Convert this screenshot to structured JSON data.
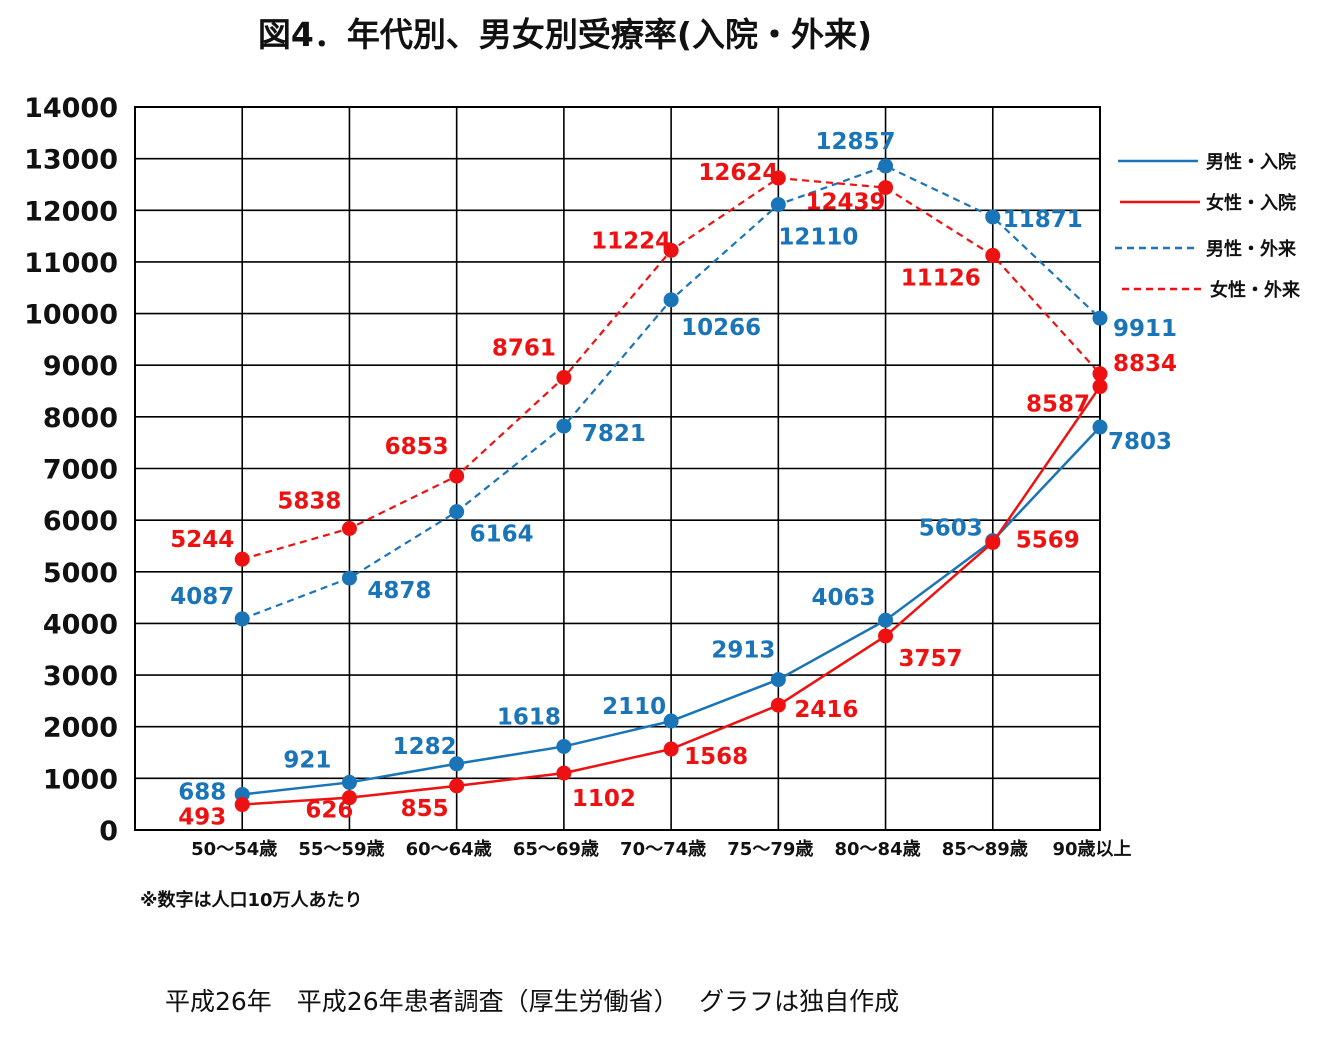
{
  "title": "図4．年代別、男女別受療率(入院・外来)",
  "note": "※数字は人口10万人あたり",
  "source": "平成26年　平成26年患者調査（厚生労働省）　 グラフは独自作成",
  "chart_data": {
    "type": "line",
    "categories": [
      "50～54歳",
      "55～59歳",
      "60～64歳",
      "65～69歳",
      "70～74歳",
      "75～79歳",
      "80～84歳",
      "85～89歳",
      "90歳以上"
    ],
    "ylim": [
      0,
      14000
    ],
    "yticks": [
      0,
      1000,
      2000,
      3000,
      4000,
      5000,
      6000,
      7000,
      8000,
      9000,
      10000,
      11000,
      12000,
      13000,
      14000
    ],
    "grid": true,
    "legend_position": "right",
    "series": [
      {
        "name": "男性・入院",
        "color": "#1a74b8",
        "dashed": false,
        "values": [
          688,
          921,
          1282,
          1618,
          2110,
          2913,
          4063,
          5603,
          7803
        ]
      },
      {
        "name": "女性・入院",
        "color": "#ee1111",
        "dashed": false,
        "values": [
          493,
          626,
          855,
          1102,
          1568,
          2416,
          3757,
          5569,
          8587
        ]
      },
      {
        "name": "男性・外来",
        "color": "#1a74b8",
        "dashed": true,
        "values": [
          4087,
          4878,
          6164,
          7821,
          10266,
          12110,
          12857,
          11871,
          9911
        ]
      },
      {
        "name": "女性・外来",
        "color": "#ee1111",
        "dashed": true,
        "values": [
          5244,
          5838,
          6853,
          8761,
          11224,
          12624,
          12439,
          11126,
          8834
        ]
      }
    ]
  }
}
